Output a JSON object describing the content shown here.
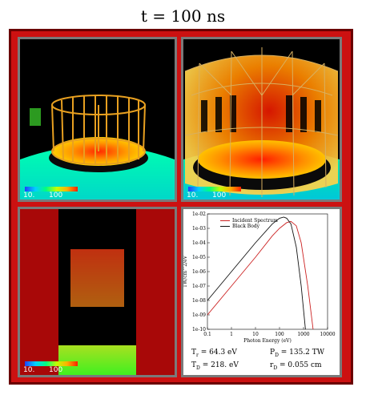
{
  "title": "t = 100 ns",
  "colorbar": {
    "min_label": "10.",
    "max_label": "100",
    "overlay_label": "T"
  },
  "panel4": {
    "chart_data": {
      "type": "line",
      "xlabel": "Photon Energy (eV)",
      "ylabel": "TW/cm^2/eV",
      "x_scale": "log",
      "y_scale": "log",
      "xlim": [
        0.1,
        10000
      ],
      "ylim": [
        1e-10,
        0.01
      ],
      "x_ticks": [
        "0.1",
        "1",
        "10",
        "100",
        "1000",
        "10000"
      ],
      "y_ticks": [
        "1e-02",
        "1e-03",
        "1e-04",
        "1e-05",
        "1e-06",
        "1e-07",
        "1e-08",
        "1e-09",
        "1e-10"
      ],
      "legend_position": "top-left",
      "series": [
        {
          "name": "Incident Spectrum",
          "color": "#cc2222",
          "x": [
            0.1,
            1,
            10,
            50,
            100,
            200,
            300,
            500,
            800,
            1500,
            2500
          ],
          "y": [
            1e-09,
            1e-07,
            1e-05,
            0.0003,
            0.001,
            0.0025,
            0.003,
            0.0015,
            0.0001,
            1e-07,
            1e-10
          ]
        },
        {
          "name": "Black Body",
          "color": "#111111",
          "x": [
            0.1,
            1,
            10,
            50,
            100,
            150,
            200,
            300,
            500,
            800,
            1200
          ],
          "y": [
            1e-08,
            1e-06,
            0.0001,
            0.002,
            0.005,
            0.006,
            0.005,
            0.002,
            5e-05,
            1e-07,
            1e-10
          ]
        }
      ]
    },
    "params": {
      "tr_label": "T",
      "tr_sub": "r",
      "tr_value": " = 64.3  eV",
      "pd_label": "P",
      "pd_sub": "D",
      "pd_value": " = 135.2 TW",
      "td_label": "T",
      "td_sub": "D",
      "td_value": " = 218.  eV",
      "rd_label": "r",
      "rd_sub": "D",
      "rd_value": " = 0.055 cm"
    }
  }
}
